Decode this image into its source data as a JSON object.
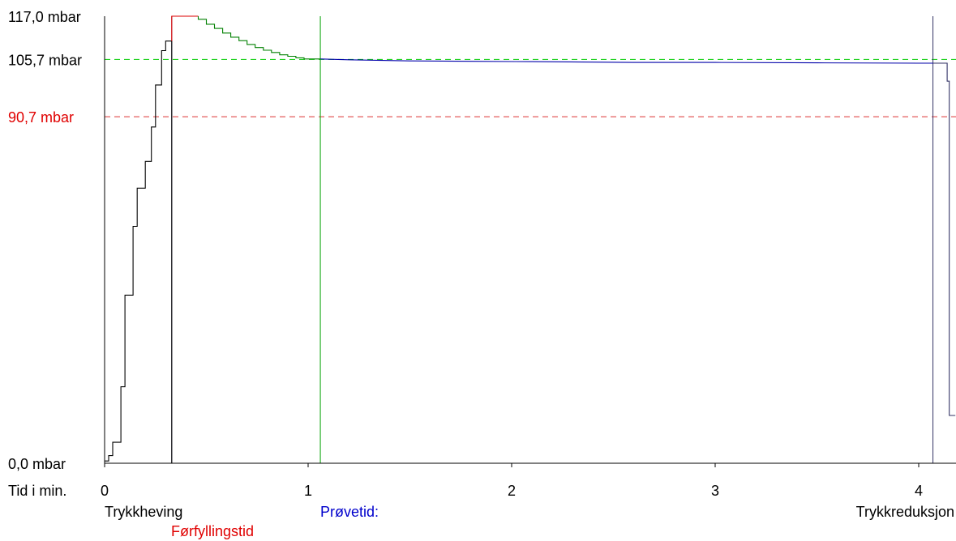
{
  "chart_data": {
    "type": "line",
    "title": "",
    "xlabel": "Tid i min.",
    "ylabel": "",
    "xlim": [
      0,
      4.18
    ],
    "ylim": [
      0,
      117.0
    ],
    "x_ticks": [
      "0",
      "1",
      "2",
      "3",
      "4"
    ],
    "y_tick_labels": [
      {
        "value": 117.0,
        "label": "117,0 mbar",
        "color": "#000000"
      },
      {
        "value": 105.7,
        "label": "105,7 mbar",
        "color": "#000000"
      },
      {
        "value": 90.7,
        "label": "90,7 mbar",
        "color": "#e00000"
      },
      {
        "value": 0.0,
        "label": "0,0 mbar",
        "color": "#000000"
      }
    ],
    "reference_lines": [
      {
        "value": 105.7,
        "color": "#00cc00",
        "style": "dashed"
      },
      {
        "value": 90.7,
        "color": "#dd3333",
        "style": "dashed"
      }
    ],
    "phase_markers": [
      {
        "x": 0.33,
        "color": "#555577"
      },
      {
        "x": 1.06,
        "color": "#00a000"
      },
      {
        "x": 4.07,
        "color": "#333366"
      }
    ],
    "phase_labels": [
      {
        "text": "Trykkheving",
        "color": "#000000"
      },
      {
        "text": "Førfyllingstid",
        "color": "#e00000"
      },
      {
        "text": "Prøvetid:",
        "color": "#0000cc"
      },
      {
        "text": "Trykkreduksjon",
        "color": "#000000"
      }
    ],
    "grid": false,
    "series": [
      {
        "color": "#000000",
        "points": [
          [
            0,
            0.6
          ],
          [
            0.02,
            0.6
          ],
          [
            0.02,
            2
          ],
          [
            0.04,
            2
          ],
          [
            0.04,
            5.5
          ],
          [
            0.08,
            5.5
          ],
          [
            0.08,
            20
          ],
          [
            0.1,
            20
          ],
          [
            0.1,
            44
          ],
          [
            0.14,
            44
          ],
          [
            0.14,
            62
          ],
          [
            0.16,
            62
          ],
          [
            0.16,
            72
          ],
          [
            0.2,
            72
          ],
          [
            0.2,
            79
          ],
          [
            0.23,
            79
          ],
          [
            0.23,
            88
          ],
          [
            0.25,
            88
          ],
          [
            0.25,
            99
          ],
          [
            0.28,
            99
          ],
          [
            0.28,
            108
          ],
          [
            0.3,
            108
          ],
          [
            0.3,
            110.5
          ],
          [
            0.33,
            110.5
          ],
          [
            0.33,
            0
          ]
        ]
      },
      {
        "color": "#dd0000",
        "points": [
          [
            0.33,
            110.5
          ],
          [
            0.33,
            117
          ],
          [
            0.46,
            117
          ]
        ]
      },
      {
        "color": "#008000",
        "points": [
          [
            0.46,
            117
          ],
          [
            0.46,
            116.2
          ],
          [
            0.5,
            116.2
          ],
          [
            0.5,
            114.9
          ],
          [
            0.54,
            114.9
          ],
          [
            0.54,
            113.8
          ],
          [
            0.58,
            113.8
          ],
          [
            0.58,
            112.6
          ],
          [
            0.62,
            112.6
          ],
          [
            0.62,
            111.5
          ],
          [
            0.66,
            111.5
          ],
          [
            0.66,
            110.6
          ],
          [
            0.7,
            110.6
          ],
          [
            0.7,
            109.6
          ],
          [
            0.74,
            109.6
          ],
          [
            0.74,
            108.8
          ],
          [
            0.78,
            108.8
          ],
          [
            0.78,
            108.1
          ],
          [
            0.82,
            108.1
          ],
          [
            0.82,
            107.5
          ],
          [
            0.86,
            107.5
          ],
          [
            0.86,
            106.9
          ],
          [
            0.9,
            106.9
          ],
          [
            0.9,
            106.5
          ],
          [
            0.94,
            106.5
          ],
          [
            0.94,
            106.1
          ],
          [
            0.98,
            106.1
          ],
          [
            0.98,
            105.8
          ],
          [
            1.06,
            105.8
          ]
        ]
      },
      {
        "color": "#0000aa",
        "points": [
          [
            1.06,
            105.8
          ],
          [
            1.2,
            105.6
          ],
          [
            1.5,
            105.3
          ],
          [
            1.8,
            105.2
          ],
          [
            2.1,
            105.1
          ],
          [
            2.6,
            104.9
          ],
          [
            3.0,
            104.9
          ],
          [
            3.5,
            104.8
          ],
          [
            4.0,
            104.7
          ],
          [
            4.07,
            104.7
          ]
        ]
      },
      {
        "color": "#333366",
        "points": [
          [
            4.07,
            104.7
          ],
          [
            4.14,
            104.7
          ],
          [
            4.14,
            100
          ],
          [
            4.15,
            100
          ],
          [
            4.15,
            12.5
          ],
          [
            4.18,
            12.5
          ]
        ]
      }
    ]
  }
}
